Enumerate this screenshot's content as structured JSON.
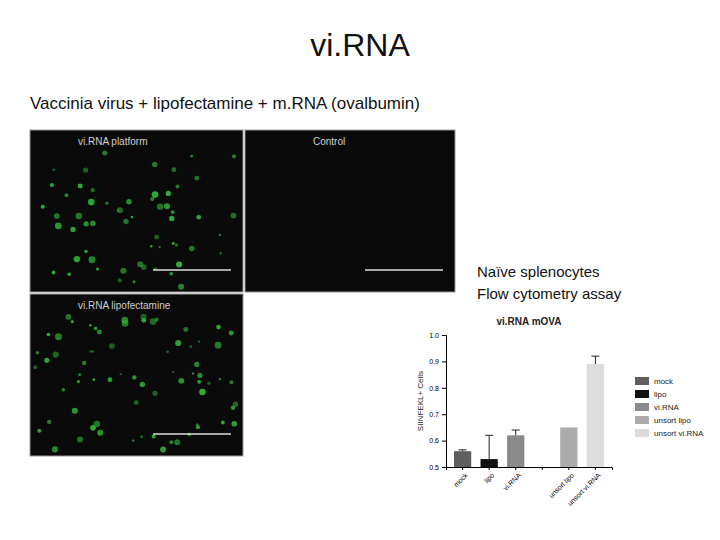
{
  "slide": {
    "title": "vi.RNA",
    "subtitle": "Vaccinia virus + lipofectamine + m.RNA (ovalbumin)",
    "panels": [
      {
        "label": "vi.RNA platform"
      },
      {
        "label": "Control"
      },
      {
        "label": "vi.RNA lipofectamine"
      }
    ],
    "notes": [
      "Naïve splenocytes",
      "Flow cytometry assay"
    ]
  },
  "chart_data": {
    "type": "bar",
    "title": "vi.RNA mOVA",
    "y_label": "SIINFEKL+ Cells",
    "categories": [
      "mock",
      "lipo",
      "vi.RNA",
      null,
      "unsort lipo",
      "unsort vi.RNA"
    ],
    "values": [
      0.56,
      0.53,
      0.62,
      null,
      0.65,
      0.89
    ],
    "errors": [
      0.005,
      0.09,
      0.02,
      null,
      null,
      0.03
    ],
    "colors": [
      "#5f5f5f",
      "#111111",
      "#8a8a8a",
      "#ffffff",
      "#acacac",
      "#dcdcdc"
    ],
    "ylim": [
      0.5,
      1.0
    ],
    "yticks": [
      0.5,
      0.6,
      0.7,
      0.8,
      0.9,
      {
        "value": 1.0,
        "label": "1.0"
      }
    ],
    "legend": "right"
  }
}
